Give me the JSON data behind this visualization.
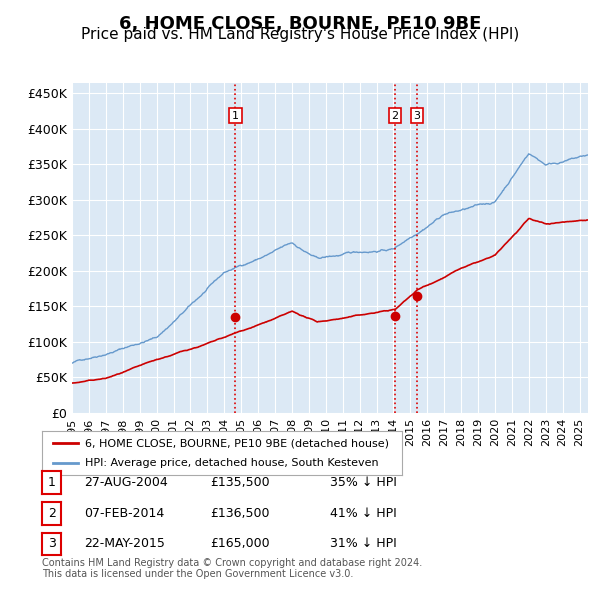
{
  "title": "6, HOME CLOSE, BOURNE, PE10 9BE",
  "subtitle": "Price paid vs. HM Land Registry's House Price Index (HPI)",
  "title_fontsize": 13,
  "subtitle_fontsize": 11,
  "ylabel_ticks": [
    "£0",
    "£50K",
    "£100K",
    "£150K",
    "£200K",
    "£250K",
    "£300K",
    "£350K",
    "£400K",
    "£450K"
  ],
  "ytick_values": [
    0,
    50000,
    100000,
    150000,
    200000,
    250000,
    300000,
    350000,
    400000,
    450000
  ],
  "ylim": [
    0,
    465000
  ],
  "xlim_start": 1995.0,
  "xlim_end": 2025.5,
  "sale_dates": [
    2004.655,
    2014.096,
    2015.388
  ],
  "sale_prices": [
    135500,
    136500,
    165000
  ],
  "sale_labels": [
    "1",
    "2",
    "3"
  ],
  "vline_color": "#dd0000",
  "vline_style": ":",
  "sale_marker_color": "#cc0000",
  "hpi_line_color": "#6699cc",
  "price_line_color": "#cc0000",
  "bg_color": "#dce9f5",
  "plot_bg_color": "#dce9f5",
  "legend_entries": [
    "6, HOME CLOSE, BOURNE, PE10 9BE (detached house)",
    "HPI: Average price, detached house, South Kesteven"
  ],
  "table_rows": [
    [
      "1",
      "27-AUG-2004",
      "£135,500",
      "35% ↓ HPI"
    ],
    [
      "2",
      "07-FEB-2014",
      "£136,500",
      "41% ↓ HPI"
    ],
    [
      "3",
      "22-MAY-2015",
      "£165,000",
      "31% ↓ HPI"
    ]
  ],
  "footnote": "Contains HM Land Registry data © Crown copyright and database right 2024.\nThis data is licensed under the Open Government Licence v3.0.",
  "xticks": [
    1995,
    1996,
    1997,
    1998,
    1999,
    2000,
    2001,
    2002,
    2003,
    2004,
    2005,
    2006,
    2007,
    2008,
    2009,
    2010,
    2011,
    2012,
    2013,
    2014,
    2015,
    2016,
    2017,
    2018,
    2019,
    2020,
    2021,
    2022,
    2023,
    2024,
    2025
  ]
}
